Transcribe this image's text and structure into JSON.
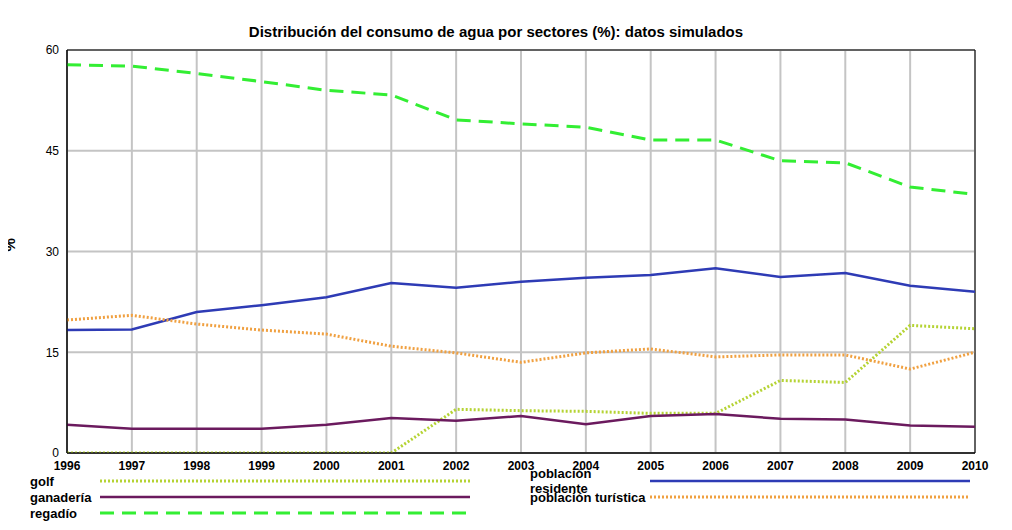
{
  "chart_data": {
    "type": "line",
    "title": "Distribución del consumo de agua por sectores (%): datos simulados",
    "y_label": "%",
    "x": [
      1996,
      1997,
      1998,
      1999,
      2000,
      2001,
      2002,
      2003,
      2004,
      2005,
      2006,
      2007,
      2008,
      2009,
      2010
    ],
    "xlim": [
      1996,
      2010
    ],
    "xticks": [
      1996,
      1997,
      1998,
      1999,
      2000,
      2001,
      2002,
      2003,
      2004,
      2005,
      2006,
      2007,
      2008,
      2009,
      2010
    ],
    "ylim": [
      0,
      60
    ],
    "yticks": [
      0,
      15,
      30,
      45,
      60
    ],
    "grid": true,
    "legend": "bottom",
    "series": [
      {
        "name": "golf",
        "color": "#b5d334",
        "line_style": "dotted",
        "values": [
          0,
          0,
          0,
          0,
          0,
          0,
          6.5,
          6.3,
          6.2,
          5.9,
          5.9,
          10.8,
          10.5,
          19,
          18.5
        ]
      },
      {
        "name": "población residente",
        "color": "#2e3bb5",
        "line_style": "solid",
        "values": [
          18.3,
          18.4,
          21,
          22,
          23.2,
          25.3,
          24.6,
          25.5,
          26.1,
          26.5,
          27.5,
          26.2,
          26.8,
          24.9,
          24
        ]
      },
      {
        "name": "ganadería",
        "color": "#6b1a5e",
        "line_style": "solid",
        "values": [
          4.2,
          3.6,
          3.6,
          3.6,
          4.2,
          5.2,
          4.8,
          5.5,
          4.3,
          5.5,
          5.8,
          5.1,
          5,
          4.1,
          3.9
        ]
      },
      {
        "name": "población turística",
        "color": "#f0a040",
        "line_style": "dotted",
        "values": [
          19.8,
          20.5,
          19.2,
          18.3,
          17.7,
          15.9,
          14.9,
          13.5,
          14.9,
          15.5,
          14.3,
          14.6,
          14.6,
          12.5,
          15
        ]
      },
      {
        "name": "regadío",
        "color": "#33ee33",
        "line_style": "dashed",
        "values": [
          57.8,
          57.6,
          56.5,
          55.3,
          54,
          53.3,
          49.6,
          49,
          48.5,
          46.6,
          46.6,
          43.5,
          43.2,
          39.6,
          38.5
        ]
      }
    ]
  }
}
